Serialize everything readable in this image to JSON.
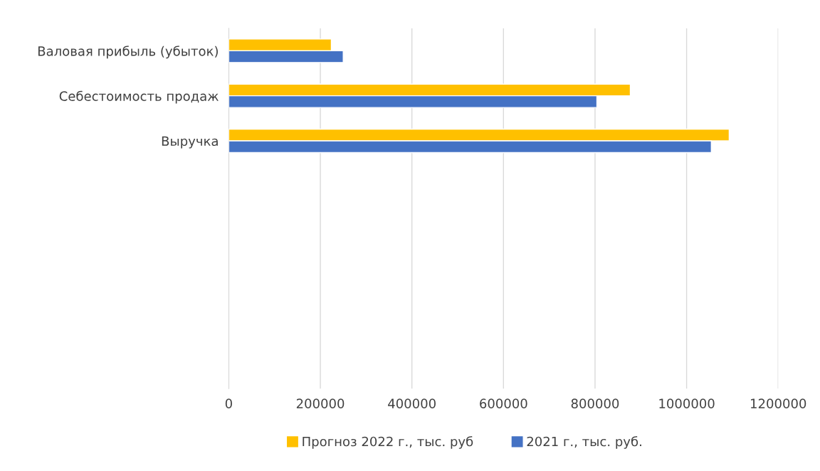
{
  "chart_data": {
    "type": "bar",
    "orientation": "horizontal",
    "categories": [
      "Валовая прибыль (убыток)",
      "Себестоимость продаж",
      "Выручка",
      null,
      null,
      null,
      null,
      null
    ],
    "series": [
      {
        "name": "Прогноз 2022 г., тыс. руб",
        "color": "#ffc000",
        "values": [
          224000,
          877000,
          1093000,
          null,
          null,
          null,
          null,
          null
        ]
      },
      {
        "name": "2021 г., тыс. руб.",
        "color": "#4472c4",
        "values": [
          250000,
          804000,
          1054000,
          null,
          null,
          null,
          null,
          null
        ]
      }
    ],
    "xlim": [
      0,
      1200000
    ],
    "xticks": [
      0,
      200000,
      400000,
      600000,
      800000,
      1000000,
      1200000
    ],
    "grid": "x",
    "legend": "bottom"
  }
}
